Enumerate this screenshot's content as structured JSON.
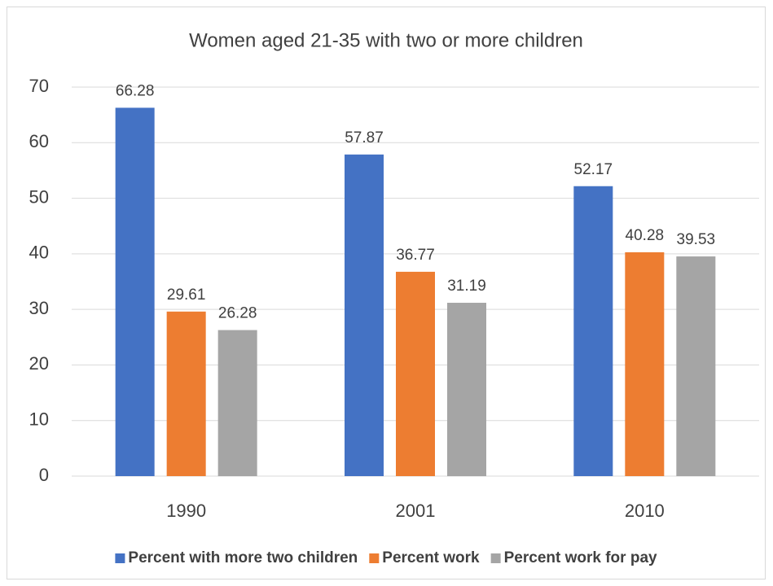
{
  "chart_data": {
    "type": "bar",
    "title": "Women aged 21-35 with two or more children",
    "categories": [
      "1990",
      "2001",
      "2010"
    ],
    "series": [
      {
        "name": "Percent with more two children",
        "color": "#4472c4",
        "values": [
          66.28,
          57.87,
          52.17
        ]
      },
      {
        "name": "Percent work",
        "color": "#ed7d31",
        "values": [
          29.61,
          36.77,
          40.28
        ]
      },
      {
        "name": "Percent work for pay",
        "color": "#a5a5a5",
        "values": [
          26.28,
          31.19,
          39.53
        ]
      }
    ],
    "ylim": [
      0,
      70
    ],
    "yticks": [
      0,
      10,
      20,
      30,
      40,
      50,
      60,
      70
    ],
    "grid": true,
    "legend": "bottom"
  }
}
